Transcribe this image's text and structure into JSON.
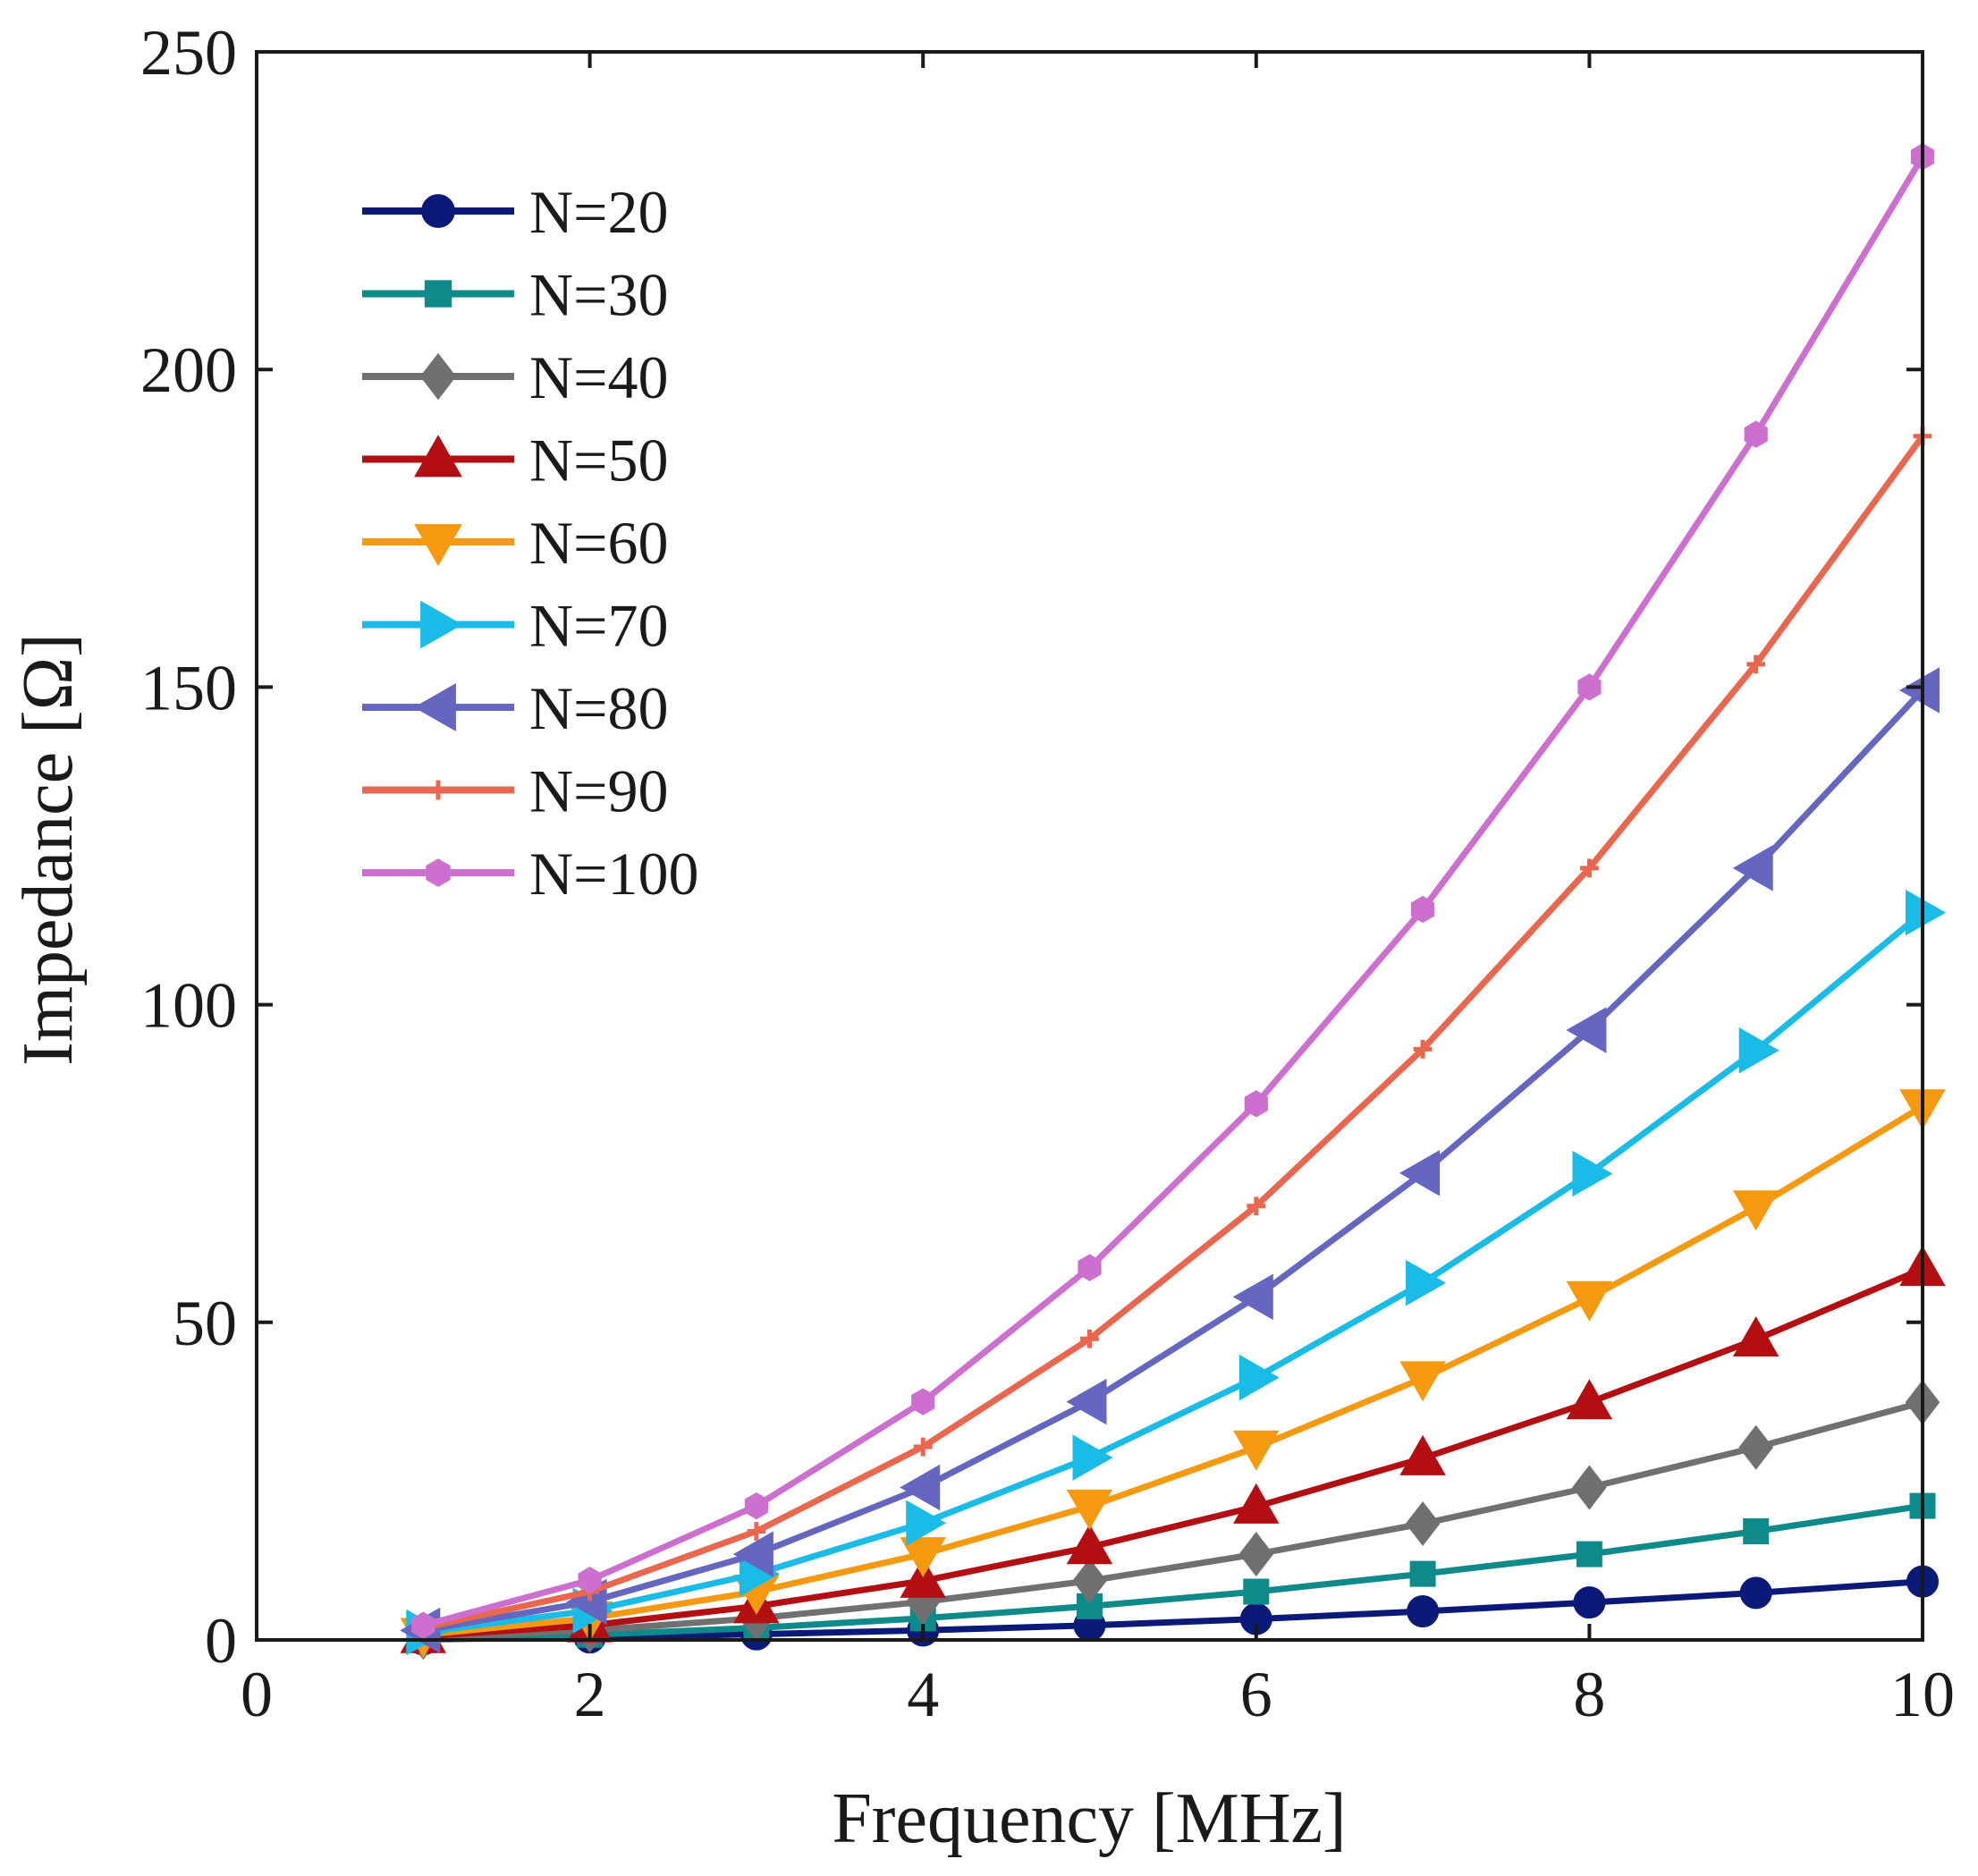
{
  "chart_data": {
    "type": "line",
    "title": "",
    "xlabel": "Frequency [MHz]",
    "ylabel": "Impedance [Ω]",
    "xlim": [
      0,
      10
    ],
    "ylim": [
      0,
      250
    ],
    "xticks": [
      0,
      2,
      4,
      6,
      8,
      10
    ],
    "yticks": [
      0,
      50,
      100,
      150,
      200,
      250
    ],
    "xtick_labels": [
      "0",
      "2",
      "4",
      "6",
      "8",
      "10"
    ],
    "ytick_labels": [
      "0",
      "50",
      "100",
      "150",
      "200",
      "250"
    ],
    "grid": false,
    "legend_position": "top-left",
    "x": [
      1,
      2,
      3,
      4,
      5,
      6,
      7,
      8,
      9,
      10
    ],
    "series": [
      {
        "name": "N=20",
        "color": "#0b1a78",
        "marker": "circle",
        "values": [
          0.1,
          0.4,
          0.9,
          1.5,
          2.3,
          3.3,
          4.5,
          5.9,
          7.4,
          9.2
        ]
      },
      {
        "name": "N=30",
        "color": "#0f8a8a",
        "marker": "square",
        "values": [
          0.2,
          0.8,
          1.9,
          3.4,
          5.3,
          7.6,
          10.4,
          13.5,
          17.1,
          21.1
        ]
      },
      {
        "name": "N=40",
        "color": "#707070",
        "marker": "diamond",
        "values": [
          0.4,
          1.5,
          3.4,
          6.0,
          9.3,
          13.5,
          18.3,
          24.0,
          30.3,
          37.4
        ]
      },
      {
        "name": "N=50",
        "color": "#b30f12",
        "marker": "triangle-up",
        "values": [
          0.6,
          2.3,
          5.3,
          9.3,
          14.6,
          21.0,
          28.6,
          37.4,
          47.3,
          58.4
        ]
      },
      {
        "name": "N=60",
        "color": "#f59a10",
        "marker": "triangle-down",
        "values": [
          0.8,
          3.4,
          7.6,
          13.5,
          21.0,
          30.3,
          41.2,
          53.8,
          68.1,
          84.0
        ]
      },
      {
        "name": "N=70",
        "color": "#1bbbe8",
        "marker": "triangle-right",
        "values": [
          1.2,
          4.6,
          10.4,
          18.4,
          28.7,
          41.3,
          56.2,
          73.4,
          92.8,
          114.5
        ]
      },
      {
        "name": "N=80",
        "color": "#6466bf",
        "marker": "triangle-left",
        "values": [
          1.5,
          6.0,
          13.5,
          24.0,
          37.5,
          54.0,
          73.5,
          96.0,
          121.5,
          149.5
        ]
      },
      {
        "name": "N=90",
        "color": "#e8674e",
        "marker": "plus",
        "values": [
          1.9,
          7.6,
          17.1,
          30.4,
          47.4,
          68.3,
          93.0,
          121.5,
          153.6,
          189.5
        ]
      },
      {
        "name": "N=100",
        "color": "#cc6fcf",
        "marker": "hexagon",
        "values": [
          2.3,
          9.4,
          21.1,
          37.5,
          58.6,
          84.4,
          115.0,
          150.0,
          189.8,
          233.5
        ]
      }
    ]
  }
}
